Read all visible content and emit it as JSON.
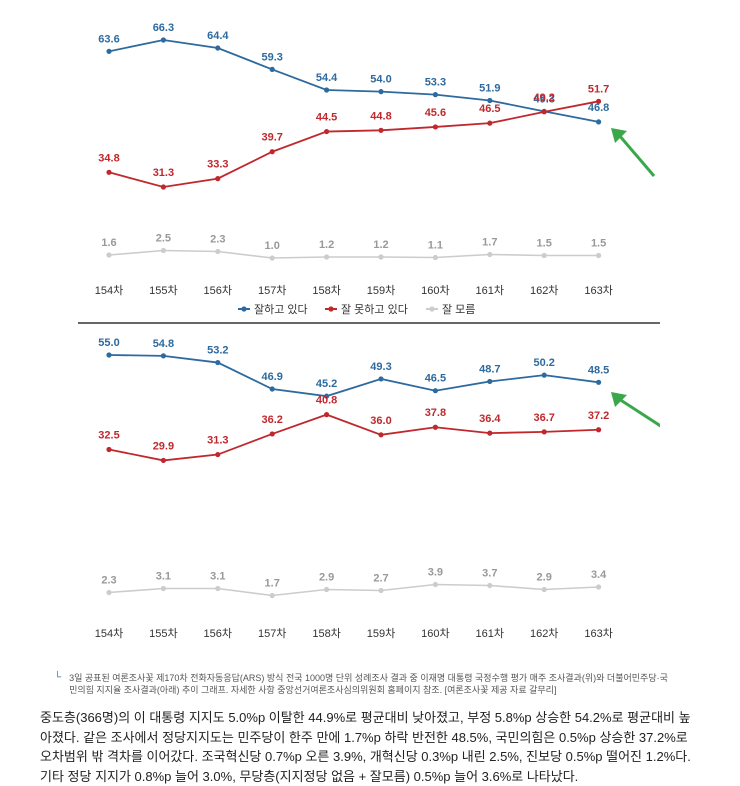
{
  "colors": {
    "blue": "#2d6a9f",
    "red": "#c0282d",
    "gray": "#cccccc",
    "arrow": "#3aa84a"
  },
  "chart_data": [
    {
      "type": "line",
      "categories": [
        "154차",
        "155차",
        "156차",
        "157차",
        "158차",
        "159차",
        "160차",
        "161차",
        "162차",
        "163차"
      ],
      "series": [
        {
          "name": "잘하고 있다",
          "color": "#2d6a9f",
          "values": [
            63.6,
            66.3,
            64.4,
            59.3,
            54.4,
            54.0,
            53.3,
            51.9,
            49.3,
            46.8
          ],
          "labels": [
            "63.6",
            "66.3",
            "64.4",
            "59.3",
            "54.4",
            "54.0",
            "53.3",
            "51.9",
            "49.3",
            "46.8"
          ]
        },
        {
          "name": "잘 못하고 있다",
          "color": "#c0282d",
          "values": [
            34.8,
            31.3,
            33.3,
            39.7,
            44.5,
            44.8,
            45.6,
            46.5,
            49.2,
            51.7
          ],
          "labels": [
            "34.8",
            "31.3",
            "33.3",
            "39.7",
            "44.5",
            "44.8",
            "45.6",
            "46.5",
            "49.2",
            "51.7"
          ]
        },
        {
          "name": "잘 모름",
          "color": "#cccccc",
          "values": [
            1.6,
            2.5,
            2.3,
            1.0,
            1.2,
            1.2,
            1.1,
            1.7,
            1.5,
            1.5
          ],
          "labels": [
            "1.6",
            "2.5",
            "2.3",
            "1.0",
            "1.2",
            "1.2",
            "1.1",
            "1.7",
            "1.5",
            "1.5"
          ]
        }
      ]
    },
    {
      "type": "line",
      "categories": [
        "154차",
        "155차",
        "156차",
        "157차",
        "158차",
        "159차",
        "160차",
        "161차",
        "162차",
        "163차"
      ],
      "series": [
        {
          "name": "더불어민주당",
          "color": "#2d6a9f",
          "values": [
            55.0,
            54.8,
            53.2,
            46.9,
            45.2,
            49.3,
            46.5,
            48.7,
            50.2,
            48.5
          ],
          "labels": [
            "55.0",
            "54.8",
            "53.2",
            "46.9",
            "45.2",
            "49.3",
            "46.5",
            "48.7",
            "50.2",
            "48.5"
          ]
        },
        {
          "name": "국민의힘",
          "color": "#c0282d",
          "values": [
            32.5,
            29.9,
            31.3,
            36.2,
            40.8,
            36.0,
            37.8,
            36.4,
            36.7,
            37.2
          ],
          "labels": [
            "32.5",
            "29.9",
            "31.3",
            "36.2",
            "40.8",
            "36.0",
            "37.8",
            "36.4",
            "36.7",
            "37.2"
          ]
        },
        {
          "name": "지지 정당 없음",
          "color": "#cccccc",
          "values": [
            2.3,
            3.1,
            3.1,
            1.7,
            2.9,
            2.7,
            3.9,
            3.7,
            2.9,
            3.4
          ],
          "labels": [
            "2.3",
            "3.1",
            "3.1",
            "1.7",
            "2.9",
            "2.7",
            "3.9",
            "3.7",
            "2.9",
            "3.4"
          ]
        }
      ]
    }
  ],
  "caption": "3일 공표된 여론조사꽃 제170차 전화자동응답(ARS) 방식 전국 1000명 단위 성례조사 결과 중 이재명 대통령 국정수행 평가 매주 조사결과(위)와 더불어민주당·국민의힘 지지율 조사결과(아래) 추이 그래프. 자세한 사항 중앙선거여론조사심의위원회 홈페이지 참조. [여론조사꽃 제공 자료 갈무리]",
  "body_text": "중도층(366명)의 이 대통령 지지도 5.0%p 이탈한 44.9%로 평균대비 낮아졌고, 부정 5.8%p 상승한 54.2%로 평균대비 높아졌다. 같은 조사에서 정당지지도는 민주당이 한주 만에 1.7%p 하락 반전한 48.5%, 국민의힘은 0.5%p 상승한 37.2%로 오차범위 밖 격차를 이어갔다. 조국혁신당 0.7%p 오른 3.9%, 개혁신당 0.3%p 내린 2.5%, 진보당 0.5%p 떨어진 1.2%다. 기타 정당 지지가 0.8%p 늘어 3.0%, 무당층(지지정당 없음 + 잘모름) 0.5%p 늘어 3.6%로 나타났다."
}
